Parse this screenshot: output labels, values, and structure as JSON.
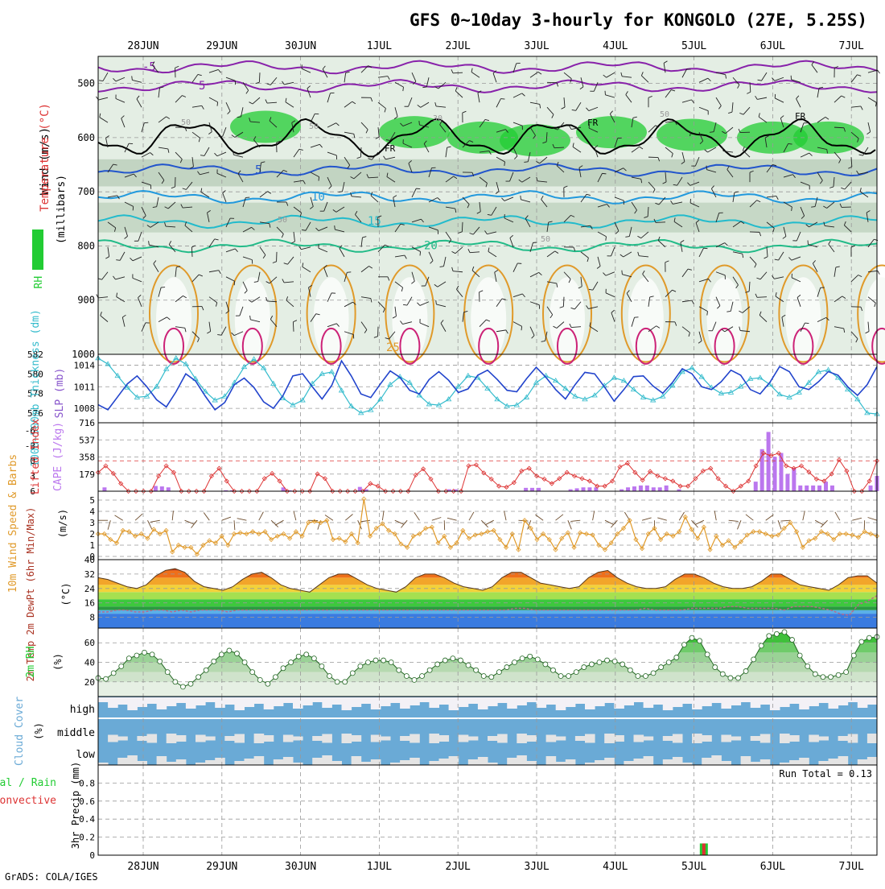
{
  "title": "GFS 0~10day 3-hourly for KONGOLO (27E, 5.25S)",
  "footer": "GrADS: COLA/IGES",
  "run_total": "Run Total = 0.13",
  "colors": {
    "rh_green": "#22cc33",
    "slp": "#2244cc",
    "thick": "#33bbcc",
    "li": "#dd3333",
    "cape": "#bb77ee",
    "wind": "#e09a2a",
    "cloud": "#6aaad6"
  },
  "chart_data": [
    {
      "type": "line",
      "name": "upper-air cross section",
      "x_tick_labels": [
        "28JUN",
        "29JUN",
        "30JUN",
        "1JUL",
        "2JUL",
        "3JUL",
        "4JUL",
        "5JUL",
        "6JUL",
        "7JUL"
      ],
      "ylabel_parts": [
        "Wind (m/s)",
        "Temperature (°C)",
        "RH (%)"
      ],
      "ylabel_units": "(millibars)",
      "y_ticks": [
        500,
        600,
        700,
        800,
        900,
        1000
      ],
      "ylim": [
        450,
        1000
      ],
      "isotherms": [
        {
          "label": "-5",
          "level": 470
        },
        {
          "label": "5",
          "level": 505
        },
        {
          "label": "5",
          "level": 660
        },
        {
          "label": "10",
          "level": 710
        },
        {
          "label": "15",
          "level": 755
        },
        {
          "label": "20",
          "level": 800
        }
      ],
      "contour_labels": [
        "FR",
        "FR",
        "FR",
        "5",
        "5",
        "10",
        "10",
        "15",
        "20",
        "20",
        "20",
        "25",
        "50",
        "50",
        "30",
        "50"
      ]
    },
    {
      "type": "line",
      "name": "SLP and thickness",
      "ylabel_left": "1000~500mb Thickness (dm)",
      "ylabel_right": "SLP (mb)",
      "left_ticks": [
        576,
        578,
        580,
        582
      ],
      "right_ticks": [
        1008,
        1011,
        1014
      ],
      "slp": [
        1008.5,
        1007.8,
        1009.6,
        1011.4,
        1012.5,
        1011.0,
        1009.2,
        1008.2,
        1010.3,
        1012.8,
        1011.8,
        1009.7,
        1007.8,
        1008.8,
        1011.3,
        1012.2,
        1010.9,
        1008.9,
        1008.0,
        1009.8,
        1012.5,
        1012.8,
        1011.0,
        1009.3,
        1011.2,
        1014.6,
        1012.5,
        1010.0,
        1009.5,
        1011.4,
        1013.2,
        1012.3,
        1010.5,
        1010.0,
        1012.0,
        1013.1,
        1011.9,
        1010.2,
        1010.7,
        1012.6,
        1013.3,
        1012.0,
        1010.5,
        1010.3,
        1012.1,
        1013.7,
        1012.3,
        1010.6,
        1009.3,
        1011.3,
        1013.0,
        1012.8,
        1011.0,
        1009.0,
        1010.6,
        1012.4,
        1012.5,
        1011.1,
        1010.1,
        1011.6,
        1013.5,
        1012.8,
        1011.0,
        1010.6,
        1011.7,
        1013.3,
        1012.6,
        1010.6,
        1010.0,
        1011.6,
        1013.8,
        1013.1,
        1011.0,
        1010.6,
        1011.7,
        1013.1,
        1012.6,
        1011.0,
        1009.8,
        1011.3,
        1013.8
      ],
      "thickness": [
        581.6,
        581.0,
        579.8,
        578.6,
        577.6,
        577.7,
        578.7,
        580.5,
        581.6,
        581.0,
        579.5,
        578.2,
        577.3,
        577.7,
        579.1,
        580.7,
        581.5,
        580.6,
        579.0,
        577.5,
        576.8,
        577.3,
        579.0,
        580.0,
        580.2,
        578.3,
        576.7,
        576.0,
        576.3,
        577.4,
        578.9,
        579.7,
        579.1,
        577.8,
        576.9,
        576.8,
        577.4,
        578.7,
        579.8,
        579.6,
        578.5,
        577.4,
        576.7,
        576.8,
        577.6,
        579.1,
        579.8,
        579.3,
        578.5,
        577.7,
        577.4,
        577.8,
        578.8,
        579.6,
        579.3,
        578.4,
        577.6,
        577.3,
        577.7,
        578.8,
        580.2,
        580.6,
        579.7,
        578.6,
        578.0,
        578.1,
        578.7,
        579.5,
        579.6,
        578.9,
        577.9,
        577.6,
        578.1,
        579.1,
        580.2,
        580.4,
        579.6,
        578.4,
        577.4,
        576.0,
        575.9
      ]
    },
    {
      "type": "bar",
      "name": "CAPE and lifted index",
      "ylabel_left": "Lifted Index",
      "ylabel_right": "CAPE (J/kg)",
      "li_ticks": [
        -6,
        -3,
        0,
        3,
        6
      ],
      "cape_ticks": [
        179,
        358,
        537,
        716
      ],
      "cape": [
        0,
        40,
        0,
        0,
        0,
        0,
        0,
        0,
        0,
        55,
        50,
        40,
        0,
        0,
        0,
        0,
        0,
        0,
        0,
        0,
        10,
        10,
        0,
        0,
        0,
        0,
        0,
        0,
        0,
        40,
        10,
        0,
        0,
        0,
        0,
        0,
        0,
        0,
        0,
        0,
        0,
        45,
        20,
        0,
        0,
        0,
        0,
        0,
        0,
        0,
        0,
        0,
        0,
        0,
        0,
        20,
        20,
        0,
        0,
        0,
        0,
        0,
        0,
        0,
        0,
        0,
        0,
        35,
        35,
        35,
        0,
        0,
        0,
        0,
        20,
        30,
        40,
        40,
        40,
        0,
        0,
        0,
        20,
        40,
        50,
        60,
        60,
        40,
        40,
        60,
        0,
        20,
        0,
        0,
        0,
        0,
        0,
        0,
        0,
        0,
        0,
        0,
        0,
        100,
        440,
        620,
        360,
        400,
        180,
        240,
        60,
        60,
        60,
        60,
        100,
        60,
        0,
        0,
        0,
        0,
        0,
        60,
        160
      ],
      "li": [
        2.3,
        1.0,
        2.5,
        4.5,
        6.0,
        6.0,
        6.0,
        6.0,
        3.0,
        1.0,
        2.3,
        6.0,
        6.0,
        6.0,
        6.0,
        3.0,
        1.5,
        4.0,
        6.0,
        6.0,
        6.0,
        6.0,
        3.5,
        2.5,
        4.0,
        6.0,
        6.0,
        6.0,
        6.0,
        2.6,
        3.5,
        6.0,
        6.0,
        6.0,
        6.0,
        6.0,
        4.5,
        5.0,
        6.0,
        6.0,
        6.0,
        6.0,
        2.8,
        1.6,
        3.6,
        6.0,
        6.0,
        6.0,
        6.0,
        1.0,
        0.8,
        2.4,
        3.6,
        5.0,
        5.2,
        4.3,
        2.0,
        1.5,
        3.0,
        3.6,
        4.5,
        3.5,
        2.3,
        3.0,
        3.5,
        4.0,
        5.0,
        5.0,
        4.0,
        1.2,
        0.5,
        2.3,
        3.8,
        2.1,
        3.0,
        3.5,
        4.0,
        5.0,
        5.0,
        3.5,
        2.0,
        1.5,
        3.5,
        5.0,
        6.0,
        5.0,
        4.0,
        1.0,
        -1.5,
        -1.0,
        -1.5,
        1.0,
        1.5,
        1.0,
        2.2,
        3.6,
        4.0,
        2.6,
        -0.2,
        2.0,
        6.0,
        6.0,
        4.0,
        0.0
      ]
    },
    {
      "type": "line",
      "name": "10m wind speed",
      "ylabel_left": "10m Wind Speed & Barbs",
      "ylabel_right": "(m/s)",
      "y_ticks": [
        0,
        1,
        2,
        3,
        4,
        5
      ],
      "values": [
        2.0,
        2.0,
        1.5,
        1.2,
        2.3,
        2.2,
        1.8,
        2.0,
        1.6,
        2.4,
        2.0,
        2.3,
        0.4,
        1.0,
        0.8,
        0.8,
        0.2,
        1.0,
        1.4,
        1.2,
        1.8,
        1.0,
        2.0,
        2.1,
        2.0,
        2.2,
        2.0,
        2.2,
        1.5,
        1.8,
        2.0,
        1.6,
        2.2,
        1.8,
        3.0,
        3.1,
        3.0,
        3.2,
        1.5,
        1.6,
        1.3,
        2.0,
        1.2,
        5.1,
        1.8,
        2.5,
        2.9,
        2.3,
        2.0,
        1.1,
        0.8,
        1.8,
        2.0,
        2.5,
        2.6,
        1.2,
        1.8,
        0.8,
        1.2,
        2.3,
        1.6,
        1.9,
        2.0,
        2.2,
        2.3,
        1.5,
        0.8,
        2.0,
        0.6,
        3.2,
        2.5,
        1.5,
        2.0,
        1.5,
        0.6,
        1.6,
        2.1,
        0.8,
        2.1,
        2.0,
        1.9,
        1.0,
        0.6,
        1.2,
        2.0,
        2.5,
        3.2,
        1.5,
        0.7,
        2.0,
        2.5,
        1.5,
        2.0,
        1.8,
        2.2,
        3.5,
        2.4,
        1.6,
        2.6,
        0.6,
        1.8,
        1.0,
        1.4,
        0.8,
        1.3,
        1.9,
        2.2,
        2.2,
        2.0,
        1.8,
        1.9,
        2.5,
        3.0,
        2.2,
        0.8,
        1.4,
        1.6,
        2.2,
        2.0,
        1.5,
        2.0,
        2.0,
        1.9,
        1.7,
        2.2,
        2.0,
        1.8
      ]
    },
    {
      "type": "area",
      "name": "2m temperature",
      "ylabel_left": "2m Temp 2m DewPt (6hr Min/Max)",
      "ylabel_right": "(°C)",
      "y_ticks": [
        8,
        16,
        24,
        32,
        40
      ],
      "temp": [
        30,
        29,
        27,
        25,
        24,
        26,
        31,
        34,
        35,
        33,
        28,
        25,
        24,
        23,
        25,
        29,
        32,
        33,
        30,
        26,
        24,
        23,
        22,
        26,
        30,
        32,
        32,
        29,
        26,
        24,
        23,
        22,
        25,
        30,
        32,
        32,
        30,
        27,
        25,
        24,
        23,
        25,
        30,
        33,
        33,
        30,
        27,
        26,
        25,
        24,
        25,
        30,
        33,
        34,
        30,
        27,
        25,
        24,
        24,
        25,
        29,
        32,
        32,
        30,
        27,
        25,
        24,
        24,
        25,
        28,
        32,
        32,
        29,
        26,
        25,
        24,
        23,
        26,
        30,
        31,
        31,
        27
      ],
      "dewpt": [
        11,
        11,
        12,
        12,
        11,
        11,
        12,
        12,
        11,
        12,
        11,
        12,
        12,
        12,
        11,
        12,
        12,
        12,
        12,
        12,
        12,
        12,
        12,
        12,
        12,
        12,
        12,
        12,
        12,
        12,
        12,
        12,
        12,
        12,
        12,
        12,
        12,
        12,
        12,
        12,
        12,
        12,
        12,
        12,
        12,
        13,
        13,
        12,
        12,
        12,
        12,
        12,
        12,
        12,
        12,
        12,
        12,
        12,
        12,
        13,
        12,
        12,
        12,
        12,
        13,
        13,
        13,
        13,
        14,
        14,
        13,
        13,
        13,
        13,
        12,
        14,
        14,
        14,
        13,
        12,
        10,
        9,
        15,
        17,
        20
      ]
    },
    {
      "type": "area",
      "name": "2m relative humidity",
      "ylabel_left": "2m RH",
      "ylabel_right": "(%)",
      "y_ticks": [
        20,
        40,
        60
      ],
      "values": [
        24,
        23,
        29,
        36,
        44,
        47,
        50,
        48,
        41,
        30,
        20,
        15,
        18,
        25,
        32,
        41,
        48,
        52,
        49,
        40,
        30,
        22,
        18,
        25,
        34,
        40,
        46,
        48,
        44,
        36,
        26,
        20,
        20,
        29,
        36,
        40,
        42,
        42,
        40,
        32,
        26,
        22,
        26,
        32,
        38,
        42,
        44,
        42,
        37,
        32,
        26,
        25,
        30,
        35,
        40,
        44,
        46,
        43,
        38,
        32,
        26,
        26,
        30,
        35,
        38,
        40,
        42,
        41,
        38,
        32,
        26,
        26,
        29,
        35,
        40,
        45,
        58,
        65,
        62,
        48,
        35,
        28,
        24,
        24,
        31,
        43,
        57,
        67,
        69,
        71,
        63,
        47,
        36,
        28,
        25,
        25,
        27,
        30,
        47,
        61,
        65,
        66
      ]
    },
    {
      "type": "heatmap",
      "name": "cloud cover",
      "ylabel_left": "Cloud Cover",
      "ylabel_right": "(%)",
      "layer_labels": [
        "high",
        "middle",
        "low"
      ]
    },
    {
      "type": "bar",
      "name": "precipitation",
      "ylabel_left": [
        "Total / Rain",
        "Convective"
      ],
      "ylabel_right": "3hr Precip (mm)",
      "y_ticks": [
        0,
        0.2,
        0.4,
        0.6,
        0.8
      ],
      "ylim": [
        0,
        1.0
      ],
      "bars": [
        {
          "date": "5JUL",
          "offset_hours": 3,
          "total": 0.13,
          "convective": 0.13
        }
      ]
    }
  ]
}
